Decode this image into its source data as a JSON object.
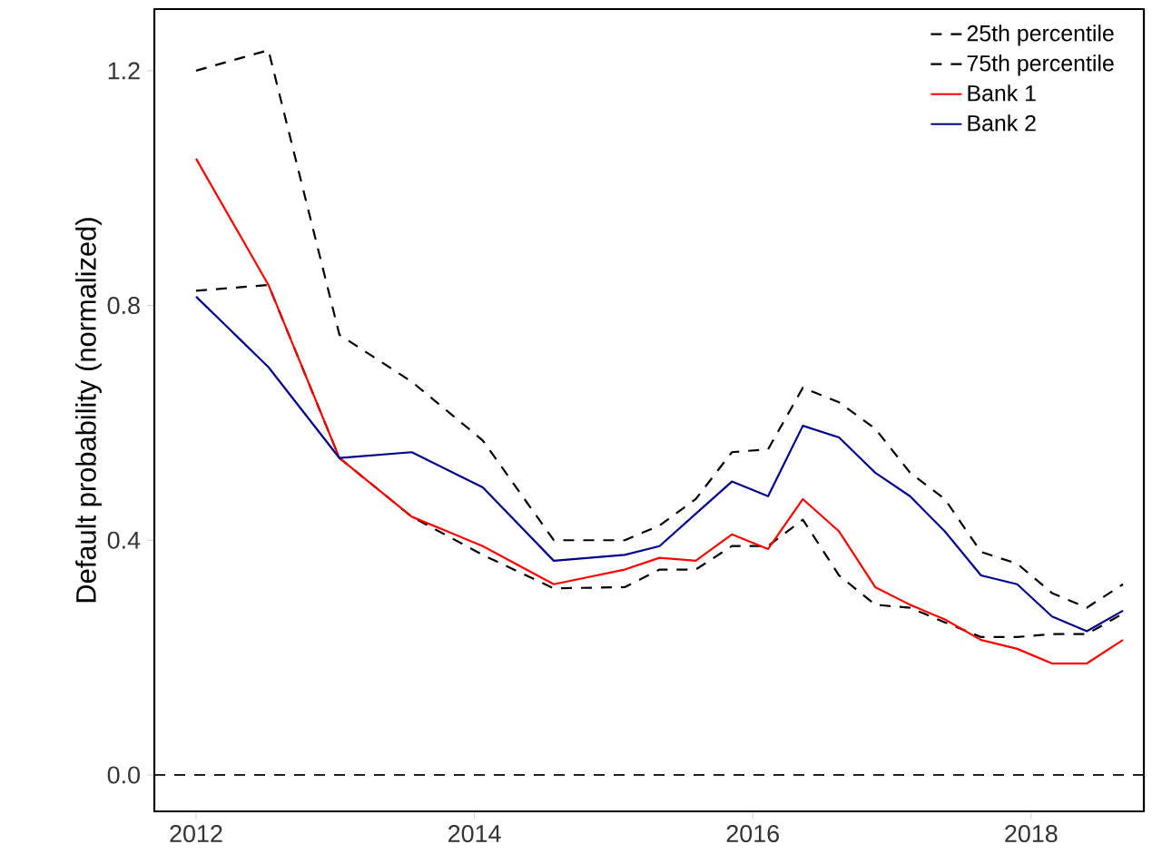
{
  "chart_data": {
    "type": "line",
    "ylabel": "Default probability (normalized)",
    "x": [
      2012,
      2012.52,
      2013.03,
      2013.55,
      2014.06,
      2014.57,
      2015.08,
      2015.33,
      2015.59,
      2015.85,
      2016.11,
      2016.36,
      2016.62,
      2016.88,
      2017.13,
      2017.38,
      2017.64,
      2017.9,
      2018.15,
      2018.4,
      2018.66
    ],
    "series": [
      {
        "name": "25th percentile",
        "color": "#000000",
        "line_style": "dashed",
        "values": [
          0.825,
          0.835,
          0.54,
          0.44,
          0.375,
          0.318,
          0.32,
          0.35,
          0.35,
          0.39,
          0.39,
          0.435,
          0.34,
          0.29,
          0.285,
          0.26,
          0.235,
          0.235,
          0.24,
          0.24,
          0.275
        ]
      },
      {
        "name": "75th percentile",
        "color": "#000000",
        "line_style": "dashed",
        "values": [
          1.2,
          1.235,
          0.75,
          0.67,
          0.57,
          0.4,
          0.4,
          0.425,
          0.47,
          0.55,
          0.555,
          0.66,
          0.635,
          0.59,
          0.515,
          0.47,
          0.38,
          0.36,
          0.31,
          0.285,
          0.325
        ]
      },
      {
        "name": "Bank 1",
        "color": "#ff0000",
        "line_style": "solid",
        "values": [
          1.05,
          0.835,
          0.54,
          0.44,
          0.39,
          0.325,
          0.35,
          0.37,
          0.365,
          0.41,
          0.385,
          0.47,
          0.415,
          0.32,
          0.29,
          0.265,
          0.23,
          0.215,
          0.19,
          0.19,
          0.23
        ]
      },
      {
        "name": "Bank 2",
        "color": "#00008b",
        "line_style": "solid",
        "values": [
          0.815,
          0.695,
          0.54,
          0.55,
          0.49,
          0.365,
          0.375,
          0.39,
          0.445,
          0.5,
          0.475,
          0.595,
          0.575,
          0.515,
          0.475,
          0.415,
          0.34,
          0.325,
          0.27,
          0.245,
          0.28
        ]
      }
    ],
    "xlim": [
      2011.7,
      2018.81
    ],
    "xticks": [
      2012,
      2014,
      2016,
      2018
    ],
    "ylim": [
      -0.062,
      1.305
    ],
    "yticks": [
      {
        "value": 0,
        "label": "0.0"
      },
      {
        "value": 0.4,
        "label": "0.4"
      },
      {
        "value": 0.8,
        "label": "0.8"
      },
      {
        "value": 1.2,
        "label": "1.2"
      }
    ],
    "ref_lines": [
      {
        "axis": "y",
        "value": 0,
        "color": "#000000",
        "line_style": "dashed"
      }
    ],
    "grid": false,
    "legend": "top right",
    "marker": "none"
  }
}
